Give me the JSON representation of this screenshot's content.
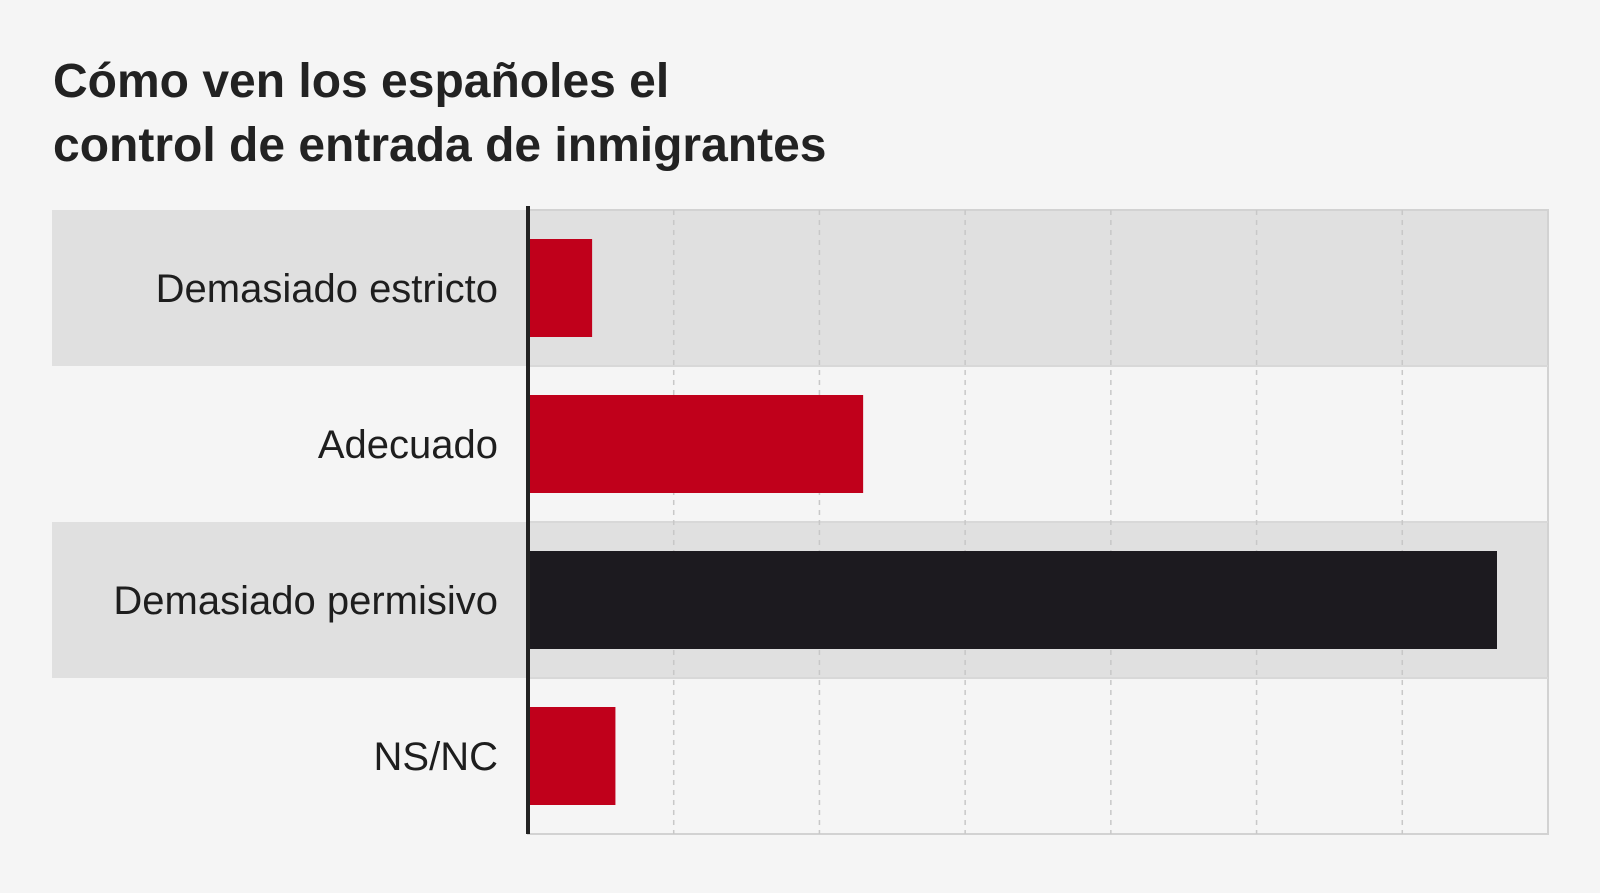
{
  "title_lines": [
    "Cómo ven los españoles el",
    "control de entrada de inmigrantes"
  ],
  "colors": {
    "highlight": "#1c1a1f",
    "default": "#c0001b",
    "band": "#e0e0e0",
    "background": "#f5f5f5",
    "grid": "#c8c8c8",
    "axis": "#222222"
  },
  "chart_data": {
    "type": "bar",
    "orientation": "horizontal",
    "title": "Cómo ven los españoles el control de entrada de inmigrantes",
    "categories": [
      "Demasiado estricto",
      "Adecuado",
      "Demasiado permisivo",
      "NS/NC"
    ],
    "values": [
      4.4,
      23,
      66.5,
      6
    ],
    "highlight_index": 2,
    "xlim": [
      0,
      70
    ],
    "grid": true,
    "grid_step": 10,
    "tick_labels_shown": false,
    "legend": "none"
  }
}
